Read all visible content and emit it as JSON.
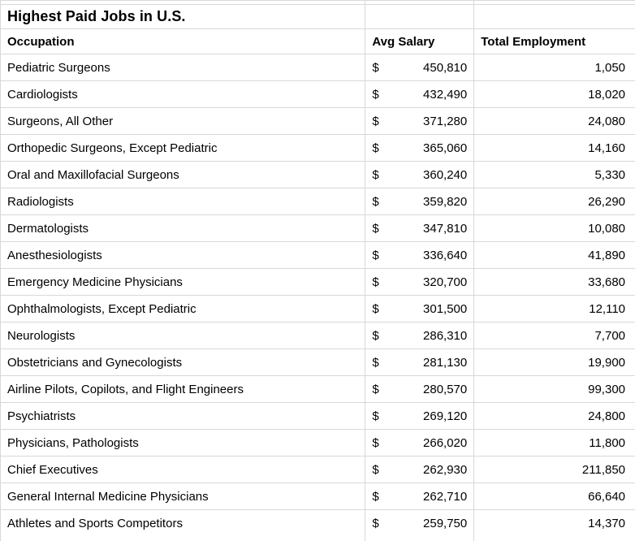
{
  "title": "Highest Paid Jobs in U.S.",
  "table": {
    "currency_symbol": "$",
    "columns": {
      "occupation": "Occupation",
      "avg_salary": "Avg Salary",
      "total_employment": "Total Employment"
    },
    "rows": [
      {
        "occupation": "Pediatric Surgeons",
        "avg_salary": "450,810",
        "total_employment": "1,050"
      },
      {
        "occupation": "Cardiologists",
        "avg_salary": "432,490",
        "total_employment": "18,020"
      },
      {
        "occupation": "Surgeons, All Other",
        "avg_salary": "371,280",
        "total_employment": "24,080"
      },
      {
        "occupation": "Orthopedic Surgeons, Except Pediatric",
        "avg_salary": "365,060",
        "total_employment": "14,160"
      },
      {
        "occupation": "Oral and Maxillofacial Surgeons",
        "avg_salary": "360,240",
        "total_employment": "5,330"
      },
      {
        "occupation": "Radiologists",
        "avg_salary": "359,820",
        "total_employment": "26,290"
      },
      {
        "occupation": "Dermatologists",
        "avg_salary": "347,810",
        "total_employment": "10,080"
      },
      {
        "occupation": "Anesthesiologists",
        "avg_salary": "336,640",
        "total_employment": "41,890"
      },
      {
        "occupation": "Emergency Medicine Physicians",
        "avg_salary": "320,700",
        "total_employment": "33,680"
      },
      {
        "occupation": "Ophthalmologists, Except Pediatric",
        "avg_salary": "301,500",
        "total_employment": "12,110"
      },
      {
        "occupation": "Neurologists",
        "avg_salary": "286,310",
        "total_employment": "7,700"
      },
      {
        "occupation": "Obstetricians and Gynecologists",
        "avg_salary": "281,130",
        "total_employment": "19,900"
      },
      {
        "occupation": "Airline Pilots, Copilots, and Flight Engineers",
        "avg_salary": "280,570",
        "total_employment": "99,300"
      },
      {
        "occupation": "Psychiatrists",
        "avg_salary": "269,120",
        "total_employment": "24,800"
      },
      {
        "occupation": "Physicians, Pathologists",
        "avg_salary": "266,020",
        "total_employment": "11,800"
      },
      {
        "occupation": "Chief Executives",
        "avg_salary": "262,930",
        "total_employment": "211,850"
      },
      {
        "occupation": "General Internal Medicine Physicians",
        "avg_salary": "262,710",
        "total_employment": "66,640"
      },
      {
        "occupation": "Athletes and Sports Competitors",
        "avg_salary": "259,750",
        "total_employment": "14,370"
      }
    ]
  },
  "colors": {
    "gridline": "#d8d8d8",
    "text": "#000000",
    "background": "#ffffff"
  }
}
